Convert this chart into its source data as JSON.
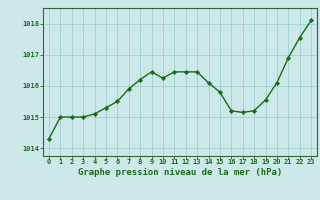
{
  "x": [
    0,
    1,
    2,
    3,
    4,
    5,
    6,
    7,
    8,
    9,
    10,
    11,
    12,
    13,
    14,
    15,
    16,
    17,
    18,
    19,
    20,
    21,
    22,
    23
  ],
  "y": [
    1014.3,
    1015.0,
    1015.0,
    1015.0,
    1015.1,
    1015.3,
    1015.5,
    1015.9,
    1016.2,
    1016.45,
    1016.25,
    1016.45,
    1016.45,
    1016.45,
    1016.1,
    1015.8,
    1015.2,
    1015.15,
    1015.2,
    1015.55,
    1016.1,
    1016.9,
    1017.55,
    1018.1
  ],
  "line_color": "#1a6b1a",
  "marker": "D",
  "marker_size": 2.2,
  "linewidth": 1.0,
  "bg_color": "#cce8e8",
  "grid_color": "#99cccc",
  "xlabel": "Graphe pression niveau de la mer (hPa)",
  "xlabel_fontsize": 6.5,
  "ylabel_ticks": [
    1014,
    1015,
    1016,
    1017,
    1018
  ],
  "xlim": [
    -0.5,
    23.5
  ],
  "ylim": [
    1013.75,
    1018.5
  ],
  "xtick_labels": [
    "0",
    "1",
    "2",
    "3",
    "4",
    "5",
    "6",
    "7",
    "8",
    "9",
    "10",
    "11",
    "12",
    "13",
    "14",
    "15",
    "16",
    "17",
    "18",
    "19",
    "20",
    "21",
    "22",
    "23"
  ],
  "tick_color": "#1a6b1a",
  "tick_fontsize": 5.0,
  "xlabel_color": "#1a6b1a",
  "spine_color": "#336633"
}
